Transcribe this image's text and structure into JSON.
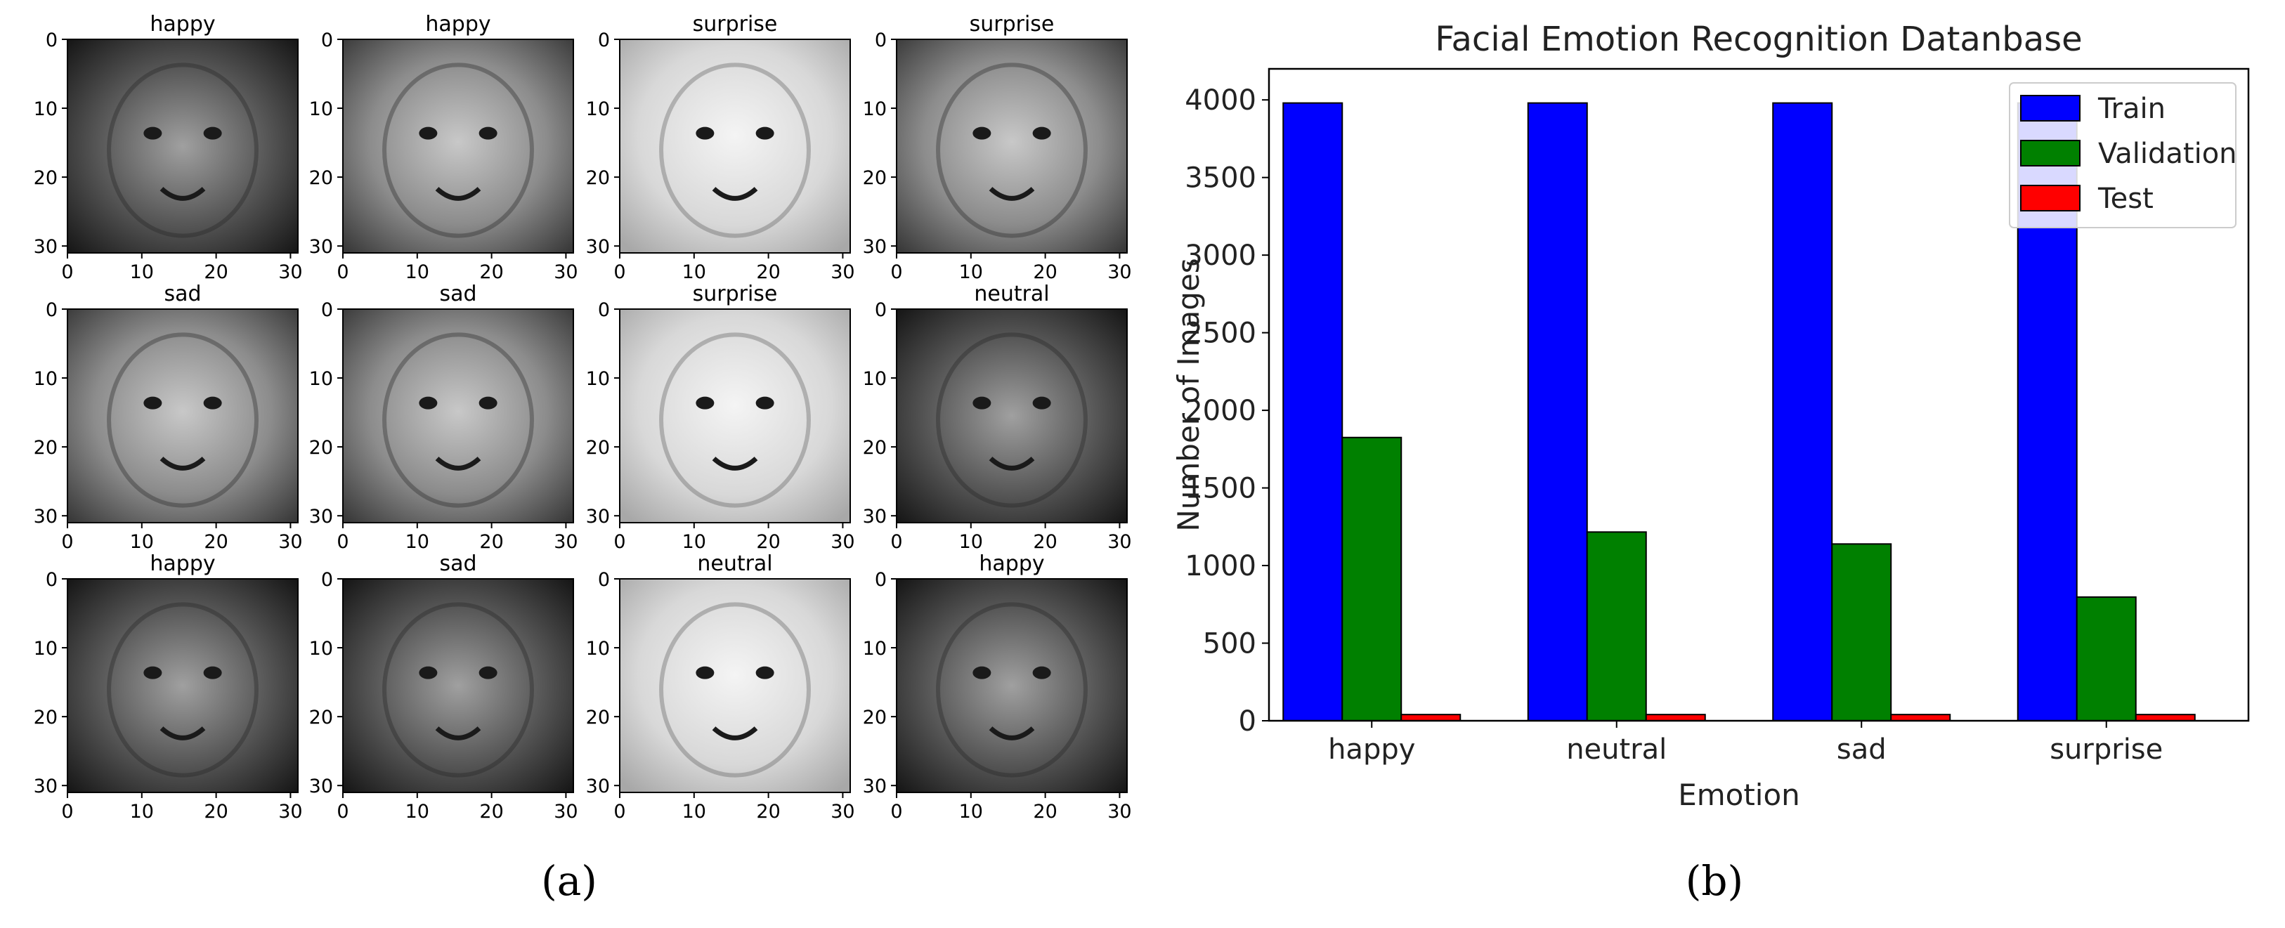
{
  "panel_a": {
    "caption": "(a)",
    "tick_labels": [
      "0",
      "10",
      "20",
      "30"
    ],
    "faces": [
      {
        "label": "happy",
        "tone": "dark"
      },
      {
        "label": "happy",
        "tone": "mid"
      },
      {
        "label": "surprise",
        "tone": "light"
      },
      {
        "label": "surprise",
        "tone": "mid"
      },
      {
        "label": "sad",
        "tone": "mid"
      },
      {
        "label": "sad",
        "tone": "mid"
      },
      {
        "label": "surprise",
        "tone": "light"
      },
      {
        "label": "neutral",
        "tone": "dark"
      },
      {
        "label": "happy",
        "tone": "dark"
      },
      {
        "label": "sad",
        "tone": "dark"
      },
      {
        "label": "neutral",
        "tone": "light"
      },
      {
        "label": "happy",
        "tone": "dark"
      }
    ]
  },
  "panel_b": {
    "caption": "(b)"
  },
  "chart_data": {
    "type": "bar",
    "title": "Facial Emotion Recognition Datanbase",
    "xlabel": "Emotion",
    "ylabel": "Number of Images",
    "categories": [
      "happy",
      "neutral",
      "sad",
      "surprise"
    ],
    "ylim": [
      0,
      4200
    ],
    "yticks": [
      0,
      500,
      1000,
      1500,
      2000,
      2500,
      3000,
      3500,
      4000
    ],
    "legend_position": "top-right",
    "grid": false,
    "series": [
      {
        "name": "Train",
        "color": "#0000ff",
        "values": [
          3980,
          3980,
          3980,
          3980
        ]
      },
      {
        "name": "Validation",
        "color": "#008000",
        "values": [
          1825,
          1216,
          1139,
          797
        ]
      },
      {
        "name": "Test",
        "color": "#ff0000",
        "values": [
          40,
          40,
          40,
          40
        ]
      }
    ]
  }
}
